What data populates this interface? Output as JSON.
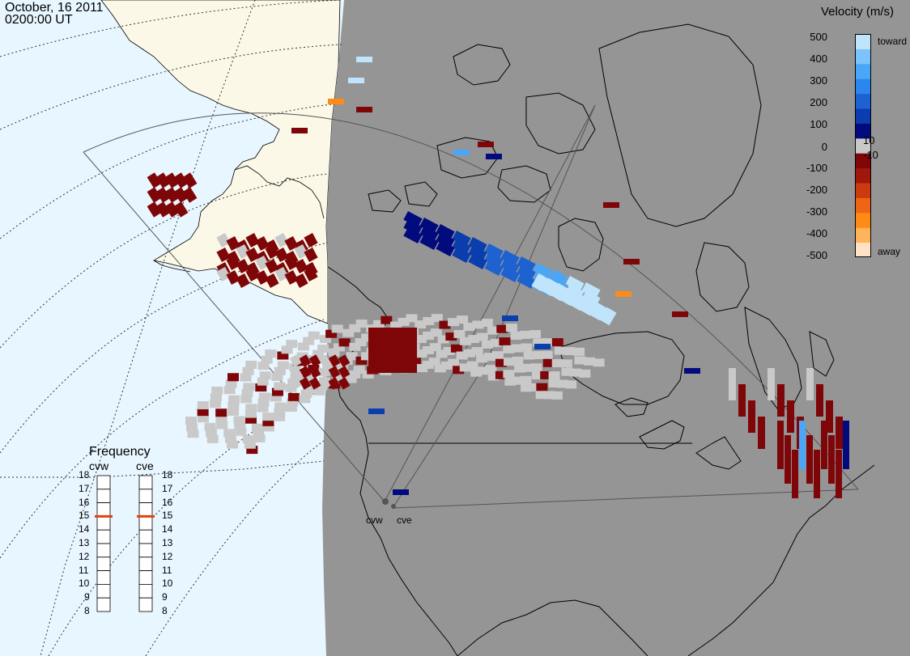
{
  "header": {
    "date": "October, 16 2011",
    "time": "0200:00 UT"
  },
  "velocity_legend": {
    "title": "Velocity (m/s)",
    "ticks": [
      "500",
      "400",
      "300",
      "200",
      "100",
      "10",
      "0",
      "-10",
      "-100",
      "-200",
      "-300",
      "-400",
      "-500"
    ],
    "toward_label": "toward",
    "away_label": "away",
    "colors": [
      "#ffe2c4",
      "#ffb45c",
      "#ff8a16",
      "#ee6614",
      "#cc3b10",
      "#a0180c",
      "#7f0608",
      "#c9c9c9",
      "#010b7e",
      "#0a3dad",
      "#1d62d0",
      "#2b86ee",
      "#4aa6f7",
      "#7cc2fb",
      "#bfe4fc"
    ],
    "ground_scatter_color": "#c9c9c9"
  },
  "frequency_panel": {
    "title": "Frequency",
    "radars": [
      {
        "name": "cvw",
        "frequency": 15,
        "marker_color": "#e04010"
      },
      {
        "name": "cve",
        "frequency": 15,
        "marker_color": "#e04010"
      }
    ],
    "ticks": [
      "18",
      "17",
      "16",
      "15",
      "14",
      "13",
      "12",
      "11",
      "10",
      "9",
      "8"
    ]
  },
  "radar_sites": [
    {
      "label": "cvw"
    },
    {
      "label": "cve"
    }
  ],
  "map": {
    "ocean_color": "#e8f6ff",
    "land_color": "#fbf8e7",
    "night_color": "#959595",
    "fov_outline_color": "#555555",
    "grid_style": "dotted"
  }
}
